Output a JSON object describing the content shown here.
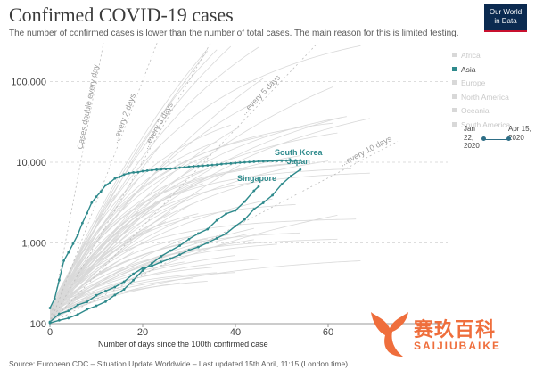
{
  "header": {
    "title": "Confirmed COVID-19 cases",
    "subtitle": "The number of confirmed cases is lower than the number of total cases. The main reason for this is limited testing.",
    "logo_line1": "Our World",
    "logo_line2": "in Data"
  },
  "legend": {
    "items": [
      {
        "label": "Africa",
        "active": false
      },
      {
        "label": "Asia",
        "active": true
      },
      {
        "label": "Europe",
        "active": false
      },
      {
        "label": "North America",
        "active": false
      },
      {
        "label": "Oceania",
        "active": false
      },
      {
        "label": "South America",
        "active": false
      }
    ]
  },
  "timeline": {
    "start_label": "Jan 22, 2020",
    "end_label": "Apr 15, 2020"
  },
  "footer": {
    "source": "Source: European CDC – Situation Update Worldwide – Last updated 15th April, 11:15 (London time)"
  },
  "watermark": {
    "chinese": "赛玖百科",
    "english": "SAIJIUBAIKE"
  },
  "colors": {
    "highlight": "#2e8a8c",
    "background_lines": "#d9d9d9",
    "reference_lines": "#bcbcbc",
    "watermark": "#ef6e3c"
  },
  "chart_data": {
    "type": "line",
    "title": "Confirmed COVID-19 cases",
    "xlabel": "Number of days since the 100th confirmed case",
    "ylabel": "",
    "y_scale": "log",
    "xlim": [
      0,
      75
    ],
    "ylim": [
      100,
      300000
    ],
    "x_ticks": [
      0,
      20,
      40,
      60
    ],
    "y_ticks": [
      {
        "value": 100,
        "label": "100"
      },
      {
        "value": 1000,
        "label": "1,000"
      },
      {
        "value": 10000,
        "label": "10,000"
      },
      {
        "value": 100000,
        "label": "100,000"
      }
    ],
    "grid": "horizontal dashed",
    "reference_lines": [
      {
        "label": "Cases double every day",
        "doubling_days": 1
      },
      {
        "label": "...every 2 days",
        "doubling_days": 2
      },
      {
        "label": "...every 3 days",
        "doubling_days": 3
      },
      {
        "label": "...every 5 days",
        "doubling_days": 5
      },
      {
        "label": "...every 10 days",
        "doubling_days": 10
      }
    ],
    "series": [
      {
        "name": "South Korea",
        "highlighted": true,
        "points": [
          [
            0,
            156
          ],
          [
            1,
            204
          ],
          [
            2,
            346
          ],
          [
            3,
            602
          ],
          [
            4,
            763
          ],
          [
            5,
            977
          ],
          [
            6,
            1261
          ],
          [
            7,
            1766
          ],
          [
            8,
            2337
          ],
          [
            9,
            3150
          ],
          [
            10,
            3736
          ],
          [
            11,
            4335
          ],
          [
            12,
            5186
          ],
          [
            13,
            5621
          ],
          [
            14,
            6284
          ],
          [
            15,
            6593
          ],
          [
            16,
            7041
          ],
          [
            17,
            7314
          ],
          [
            18,
            7478
          ],
          [
            19,
            7513
          ],
          [
            20,
            7755
          ],
          [
            21,
            7869
          ],
          [
            22,
            7979
          ],
          [
            23,
            8086
          ],
          [
            24,
            8162
          ],
          [
            25,
            8236
          ],
          [
            26,
            8320
          ],
          [
            27,
            8413
          ],
          [
            28,
            8565
          ],
          [
            29,
            8652
          ],
          [
            30,
            8799
          ],
          [
            31,
            8897
          ],
          [
            32,
            8961
          ],
          [
            33,
            9037
          ],
          [
            34,
            9137
          ],
          [
            35,
            9241
          ],
          [
            36,
            9332
          ],
          [
            37,
            9478
          ],
          [
            38,
            9583
          ],
          [
            39,
            9661
          ],
          [
            40,
            9786
          ],
          [
            41,
            9887
          ],
          [
            42,
            9976
          ],
          [
            43,
            10062
          ],
          [
            44,
            10156
          ],
          [
            45,
            10237
          ],
          [
            46,
            10284
          ],
          [
            47,
            10331
          ],
          [
            48,
            10384
          ],
          [
            49,
            10423
          ],
          [
            50,
            10450
          ],
          [
            51,
            10480
          ],
          [
            52,
            10512
          ],
          [
            53,
            10537
          ],
          [
            54,
            10564
          ]
        ]
      },
      {
        "name": "Japan",
        "highlighted": true,
        "points": [
          [
            0,
            105
          ],
          [
            2,
            132
          ],
          [
            4,
            144
          ],
          [
            6,
            170
          ],
          [
            8,
            186
          ],
          [
            10,
            224
          ],
          [
            12,
            254
          ],
          [
            14,
            284
          ],
          [
            16,
            331
          ],
          [
            18,
            414
          ],
          [
            20,
            488
          ],
          [
            22,
            519
          ],
          [
            24,
            581
          ],
          [
            26,
            639
          ],
          [
            28,
            716
          ],
          [
            30,
            814
          ],
          [
            32,
            889
          ],
          [
            34,
            1007
          ],
          [
            36,
            1140
          ],
          [
            38,
            1307
          ],
          [
            40,
            1618
          ],
          [
            42,
            1953
          ],
          [
            44,
            2617
          ],
          [
            46,
            3139
          ],
          [
            48,
            3906
          ],
          [
            50,
            5347
          ],
          [
            52,
            6748
          ],
          [
            54,
            8100
          ]
        ]
      },
      {
        "name": "Singapore",
        "highlighted": true,
        "points": [
          [
            0,
            102
          ],
          [
            2,
            110
          ],
          [
            4,
            117
          ],
          [
            6,
            130
          ],
          [
            8,
            150
          ],
          [
            10,
            166
          ],
          [
            12,
            187
          ],
          [
            14,
            226
          ],
          [
            16,
            266
          ],
          [
            18,
            345
          ],
          [
            20,
            455
          ],
          [
            22,
            558
          ],
          [
            24,
            683
          ],
          [
            26,
            802
          ],
          [
            28,
            926
          ],
          [
            30,
            1114
          ],
          [
            32,
            1309
          ],
          [
            34,
            1481
          ],
          [
            36,
            1910
          ],
          [
            38,
            2299
          ],
          [
            40,
            2532
          ],
          [
            42,
            3252
          ],
          [
            44,
            4427
          ],
          [
            45,
            5000
          ]
        ]
      }
    ]
  }
}
